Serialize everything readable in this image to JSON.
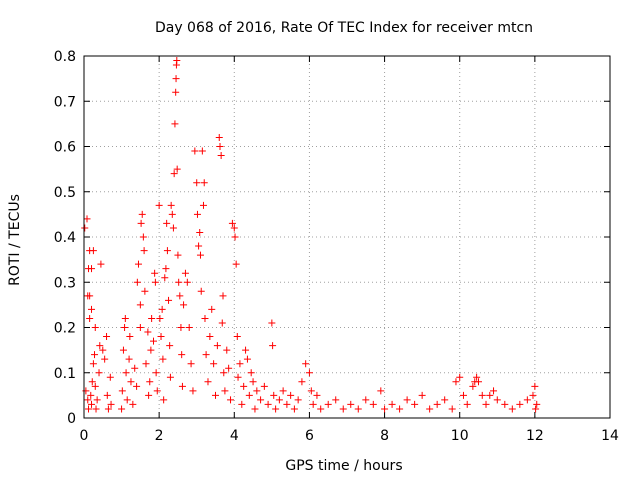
{
  "chart_data": {
    "type": "scatter",
    "title": "Day 068 of 2016, Rate Of TEC Index for receiver mtcn",
    "xlabel": "GPS time / hours",
    "ylabel": "ROTI / TECUs",
    "xlim": [
      0,
      14
    ],
    "ylim": [
      0,
      0.8
    ],
    "x_ticks": [
      0,
      2,
      4,
      6,
      8,
      10,
      12,
      14
    ],
    "y_ticks": [
      0,
      0.1,
      0.2,
      0.3,
      0.4,
      0.5,
      0.6,
      0.7,
      0.8
    ],
    "x_tick_labels": [
      "0",
      "2",
      "4",
      "6",
      "8",
      "10",
      "12",
      "14"
    ],
    "y_tick_labels": [
      "0",
      "0.1",
      "0.2",
      "0.3",
      "0.4",
      "0.5",
      "0.6",
      "0.7",
      "0.8"
    ],
    "grid": true,
    "marker": "+",
    "color": "#ff0000",
    "series": [
      {
        "name": "ROTI",
        "points": [
          [
            0.02,
            0.42
          ],
          [
            0.08,
            0.44
          ],
          [
            0.12,
            0.33
          ],
          [
            0.15,
            0.37
          ],
          [
            0.25,
            0.37
          ],
          [
            0.2,
            0.33
          ],
          [
            0.1,
            0.27
          ],
          [
            0.15,
            0.27
          ],
          [
            0.05,
            0.06
          ],
          [
            0.1,
            0.04
          ],
          [
            0.12,
            0.02
          ],
          [
            0.18,
            0.05
          ],
          [
            0.2,
            0.03
          ],
          [
            0.22,
            0.08
          ],
          [
            0.25,
            0.12
          ],
          [
            0.28,
            0.14
          ],
          [
            0.3,
            0.07
          ],
          [
            0.32,
            0.02
          ],
          [
            0.35,
            0.04
          ],
          [
            0.4,
            0.1
          ],
          [
            0.45,
            0.34
          ],
          [
            0.42,
            0.16
          ],
          [
            0.5,
            0.15
          ],
          [
            0.55,
            0.13
          ],
          [
            0.6,
            0.18
          ],
          [
            0.62,
            0.05
          ],
          [
            0.65,
            0.02
          ],
          [
            0.7,
            0.09
          ],
          [
            0.72,
            0.03
          ],
          [
            0.15,
            0.22
          ],
          [
            0.2,
            0.24
          ],
          [
            0.3,
            0.2
          ],
          [
            1.0,
            0.02
          ],
          [
            1.02,
            0.06
          ],
          [
            1.05,
            0.15
          ],
          [
            1.08,
            0.2
          ],
          [
            1.1,
            0.22
          ],
          [
            1.12,
            0.1
          ],
          [
            1.15,
            0.04
          ],
          [
            1.2,
            0.13
          ],
          [
            1.22,
            0.18
          ],
          [
            1.25,
            0.08
          ],
          [
            1.3,
            0.03
          ],
          [
            1.35,
            0.11
          ],
          [
            1.4,
            0.07
          ],
          [
            1.42,
            0.3
          ],
          [
            1.45,
            0.34
          ],
          [
            1.5,
            0.2
          ],
          [
            1.52,
            0.43
          ],
          [
            1.55,
            0.45
          ],
          [
            1.58,
            0.4
          ],
          [
            1.6,
            0.37
          ],
          [
            1.62,
            0.28
          ],
          [
            1.5,
            0.25
          ],
          [
            1.65,
            0.12
          ],
          [
            1.7,
            0.19
          ],
          [
            1.72,
            0.05
          ],
          [
            1.75,
            0.08
          ],
          [
            1.78,
            0.15
          ],
          [
            1.8,
            0.22
          ],
          [
            1.85,
            0.17
          ],
          [
            1.88,
            0.32
          ],
          [
            1.9,
            0.3
          ],
          [
            1.92,
            0.1
          ],
          [
            1.95,
            0.06
          ],
          [
            2.0,
            0.47
          ],
          [
            2.02,
            0.22
          ],
          [
            2.05,
            0.18
          ],
          [
            2.08,
            0.24
          ],
          [
            2.1,
            0.13
          ],
          [
            2.12,
            0.04
          ],
          [
            2.15,
            0.31
          ],
          [
            2.18,
            0.33
          ],
          [
            2.2,
            0.43
          ],
          [
            2.22,
            0.37
          ],
          [
            2.25,
            0.26
          ],
          [
            2.28,
            0.16
          ],
          [
            2.3,
            0.09
          ],
          [
            2.32,
            0.47
          ],
          [
            2.35,
            0.45
          ],
          [
            2.38,
            0.42
          ],
          [
            2.4,
            0.54
          ],
          [
            2.42,
            0.65
          ],
          [
            2.44,
            0.72
          ],
          [
            2.45,
            0.75
          ],
          [
            2.46,
            0.78
          ],
          [
            2.47,
            0.79
          ],
          [
            2.48,
            0.55
          ],
          [
            2.5,
            0.36
          ],
          [
            2.52,
            0.3
          ],
          [
            2.55,
            0.27
          ],
          [
            2.58,
            0.2
          ],
          [
            2.6,
            0.14
          ],
          [
            2.62,
            0.07
          ],
          [
            2.65,
            0.25
          ],
          [
            2.7,
            0.32
          ],
          [
            2.75,
            0.3
          ],
          [
            2.8,
            0.2
          ],
          [
            2.85,
            0.12
          ],
          [
            2.9,
            0.06
          ],
          [
            2.95,
            0.59
          ],
          [
            3.0,
            0.52
          ],
          [
            3.02,
            0.45
          ],
          [
            3.05,
            0.38
          ],
          [
            3.08,
            0.41
          ],
          [
            3.1,
            0.36
          ],
          [
            3.12,
            0.28
          ],
          [
            3.15,
            0.59
          ],
          [
            3.18,
            0.47
          ],
          [
            3.2,
            0.52
          ],
          [
            3.22,
            0.22
          ],
          [
            3.25,
            0.14
          ],
          [
            3.3,
            0.08
          ],
          [
            3.35,
            0.18
          ],
          [
            3.4,
            0.24
          ],
          [
            3.45,
            0.12
          ],
          [
            3.5,
            0.05
          ],
          [
            3.55,
            0.16
          ],
          [
            3.6,
            0.62
          ],
          [
            3.62,
            0.6
          ],
          [
            3.65,
            0.58
          ],
          [
            3.68,
            0.21
          ],
          [
            3.7,
            0.27
          ],
          [
            3.72,
            0.1
          ],
          [
            3.75,
            0.06
          ],
          [
            3.8,
            0.15
          ],
          [
            3.85,
            0.11
          ],
          [
            3.9,
            0.04
          ],
          [
            3.95,
            0.43
          ],
          [
            4.0,
            0.42
          ],
          [
            4.02,
            0.4
          ],
          [
            4.05,
            0.34
          ],
          [
            4.08,
            0.18
          ],
          [
            4.1,
            0.09
          ],
          [
            4.15,
            0.12
          ],
          [
            4.2,
            0.03
          ],
          [
            4.25,
            0.07
          ],
          [
            4.3,
            0.15
          ],
          [
            4.35,
            0.13
          ],
          [
            4.4,
            0.05
          ],
          [
            4.45,
            0.1
          ],
          [
            4.5,
            0.08
          ],
          [
            4.55,
            0.02
          ],
          [
            4.6,
            0.06
          ],
          [
            4.7,
            0.04
          ],
          [
            4.8,
            0.07
          ],
          [
            4.9,
            0.03
          ],
          [
            5.0,
            0.21
          ],
          [
            5.02,
            0.16
          ],
          [
            5.05,
            0.05
          ],
          [
            5.1,
            0.02
          ],
          [
            5.2,
            0.04
          ],
          [
            5.3,
            0.06
          ],
          [
            5.4,
            0.03
          ],
          [
            5.5,
            0.05
          ],
          [
            5.6,
            0.02
          ],
          [
            5.7,
            0.04
          ],
          [
            5.8,
            0.08
          ],
          [
            5.9,
            0.12
          ],
          [
            6.0,
            0.1
          ],
          [
            6.05,
            0.06
          ],
          [
            6.1,
            0.03
          ],
          [
            6.2,
            0.05
          ],
          [
            6.3,
            0.02
          ],
          [
            6.5,
            0.03
          ],
          [
            6.7,
            0.04
          ],
          [
            6.9,
            0.02
          ],
          [
            7.1,
            0.03
          ],
          [
            7.3,
            0.02
          ],
          [
            7.5,
            0.04
          ],
          [
            7.7,
            0.03
          ],
          [
            7.9,
            0.06
          ],
          [
            8.0,
            0.02
          ],
          [
            8.2,
            0.03
          ],
          [
            8.4,
            0.02
          ],
          [
            8.6,
            0.04
          ],
          [
            8.8,
            0.03
          ],
          [
            9.0,
            0.05
          ],
          [
            9.2,
            0.02
          ],
          [
            9.4,
            0.03
          ],
          [
            9.6,
            0.04
          ],
          [
            9.8,
            0.02
          ],
          [
            9.9,
            0.08
          ],
          [
            10.0,
            0.09
          ],
          [
            10.1,
            0.05
          ],
          [
            10.2,
            0.03
          ],
          [
            10.35,
            0.07
          ],
          [
            10.4,
            0.08
          ],
          [
            10.45,
            0.09
          ],
          [
            10.5,
            0.08
          ],
          [
            10.6,
            0.05
          ],
          [
            10.7,
            0.03
          ],
          [
            10.8,
            0.05
          ],
          [
            10.9,
            0.06
          ],
          [
            11.0,
            0.04
          ],
          [
            11.2,
            0.03
          ],
          [
            11.4,
            0.02
          ],
          [
            11.6,
            0.03
          ],
          [
            11.8,
            0.04
          ],
          [
            11.95,
            0.05
          ],
          [
            12.0,
            0.07
          ],
          [
            12.02,
            0.02
          ],
          [
            12.05,
            0.03
          ]
        ]
      }
    ]
  }
}
